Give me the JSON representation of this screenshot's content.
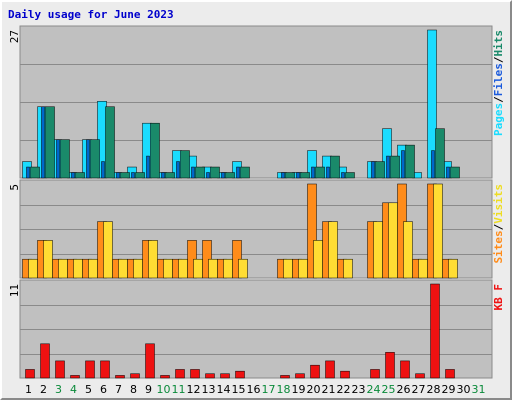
{
  "title": "Daily usage for June 2023",
  "colors": {
    "frame_bg": "#ececec",
    "panel_bg": "#c0c0c0",
    "grid": "#8a8a8a",
    "weekday_label": "#000000",
    "weekend_label": "#0a8a3a",
    "pages": "#1a8a6a",
    "hits": "#1adcff",
    "files": "#0066cc",
    "sites": "#ffdd33",
    "visits": "#ff8c1a",
    "kbf": "#ee1111",
    "separator": "#000000"
  },
  "chart_data": [
    {
      "name": "traffic",
      "type": "bar",
      "ymax": "27",
      "legend": [
        {
          "text": "Pages",
          "color": "#1adcff"
        },
        {
          "text": "/",
          "color": "#000000"
        },
        {
          "text": "Files",
          "color": "#1a5adc"
        },
        {
          "text": "/",
          "color": "#000000"
        },
        {
          "text": "Hits",
          "color": "#1a8a6a"
        }
      ],
      "series": [
        {
          "key": "hits",
          "values": [
            3,
            13,
            7,
            1,
            7,
            14,
            1,
            2,
            10,
            1,
            5,
            4,
            2,
            1,
            3,
            0,
            0,
            1,
            1,
            5,
            4,
            2,
            0,
            3,
            9,
            6,
            1,
            27,
            3,
            0,
            0
          ]
        },
        {
          "key": "pages",
          "values": [
            2,
            13,
            7,
            1,
            7,
            13,
            1,
            1,
            10,
            1,
            5,
            2,
            2,
            1,
            2,
            0,
            0,
            1,
            1,
            2,
            4,
            1,
            0,
            3,
            4,
            6,
            0,
            9,
            2,
            0,
            0
          ]
        },
        {
          "key": "files",
          "values": [
            2,
            13,
            7,
            1,
            7,
            3,
            1,
            1,
            4,
            1,
            3,
            2,
            1,
            1,
            2,
            0,
            0,
            1,
            1,
            2,
            2,
            1,
            0,
            3,
            4,
            5,
            0,
            5,
            2,
            0,
            0
          ]
        }
      ]
    },
    {
      "name": "visitors",
      "type": "bar",
      "ymax": "5",
      "legend": [
        {
          "text": "Sites",
          "color": "#ff8c1a"
        },
        {
          "text": "/",
          "color": "#000000"
        },
        {
          "text": "Visits",
          "color": "#eedd22"
        }
      ],
      "series": [
        {
          "key": "visits",
          "values": [
            1,
            2,
            1,
            1,
            1,
            3,
            1,
            1,
            2,
            1,
            1,
            2,
            2,
            1,
            2,
            0,
            0,
            1,
            1,
            5,
            3,
            1,
            0,
            3,
            4,
            5,
            1,
            5,
            1,
            0,
            0
          ]
        },
        {
          "key": "sites",
          "values": [
            1,
            2,
            1,
            1,
            1,
            3,
            1,
            1,
            2,
            1,
            1,
            1,
            1,
            1,
            1,
            0,
            0,
            1,
            1,
            2,
            3,
            1,
            0,
            3,
            4,
            3,
            1,
            5,
            1,
            0,
            0
          ]
        }
      ]
    },
    {
      "name": "volume",
      "type": "bar",
      "ymax": "11",
      "legend": [
        {
          "text": "KB F",
          "color": "#ee1111"
        }
      ],
      "series": [
        {
          "key": "kbf",
          "values": [
            1,
            4,
            2,
            0.3,
            2,
            2,
            0.3,
            0.5,
            4,
            0.3,
            1,
            1,
            0.5,
            0.5,
            0.8,
            0,
            0,
            0.3,
            0.5,
            1.5,
            2,
            0.8,
            0,
            1,
            3,
            2,
            0.5,
            11,
            1,
            0,
            0
          ]
        }
      ]
    }
  ],
  "x_axis": {
    "days": [
      "1",
      "2",
      "3",
      "4",
      "5",
      "6",
      "7",
      "8",
      "9",
      "10",
      "11",
      "12",
      "13",
      "14",
      "15",
      "16",
      "17",
      "18",
      "19",
      "20",
      "21",
      "22",
      "23",
      "24",
      "25",
      "26",
      "27",
      "28",
      "29",
      "30",
      "31"
    ],
    "weekend": [
      false,
      false,
      true,
      true,
      false,
      false,
      false,
      false,
      false,
      true,
      true,
      false,
      false,
      false,
      false,
      false,
      true,
      true,
      false,
      false,
      false,
      false,
      false,
      true,
      true,
      false,
      false,
      false,
      false,
      false,
      true
    ]
  }
}
